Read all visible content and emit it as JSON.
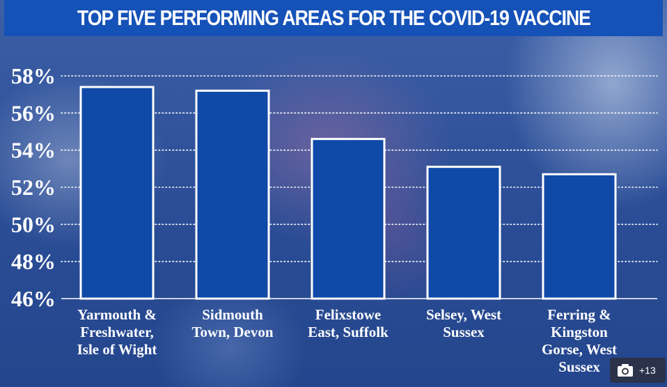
{
  "chart_data": {
    "type": "bar",
    "title": "TOP FIVE PERFORMING AREAS FOR THE COVID-19 VACCINE",
    "categories": [
      [
        "Yarmouth &",
        "Freshwater,",
        "Isle of  Wight"
      ],
      [
        "Sidmouth",
        "Town, Devon"
      ],
      [
        "Felixstowe",
        "East, Suffolk"
      ],
      [
        "Selsey, West",
        "Sussex"
      ],
      [
        "Ferring &",
        "Kingston",
        "Gorse, West",
        "Sussex"
      ]
    ],
    "values": [
      57.4,
      57.2,
      54.6,
      53.1,
      52.7
    ],
    "ylim": [
      46,
      58
    ],
    "yticks": [
      46,
      48,
      50,
      52,
      54,
      56,
      58
    ],
    "ytick_labels": [
      "46%",
      "48%",
      "50%",
      "52%",
      "54%",
      "56%",
      "58%"
    ],
    "grid": "dotted-horizontal",
    "bar_color": "#0f4aa8",
    "bar_border_color": "#ffffff"
  },
  "overlay": {
    "photo_count": "+13",
    "icon": "camera-icon"
  }
}
